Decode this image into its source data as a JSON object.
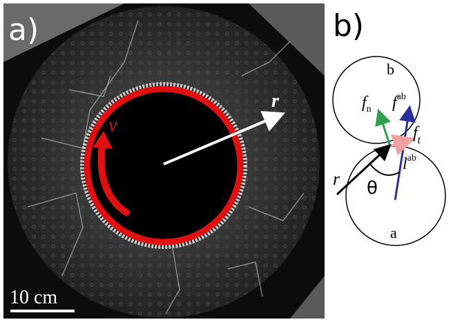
{
  "panel_a": {
    "label": "a)",
    "velocity_label": "v",
    "radius_label": "r",
    "scale_bar": "10 cm"
  },
  "panel_b": {
    "label": "b)",
    "disk_top": "b",
    "disk_bottom": "a",
    "normal_force": {
      "symbol": "f",
      "subscript": "n"
    },
    "contact_force": {
      "symbol": "f",
      "superscript": "ab"
    },
    "tangential_force": {
      "symbol": "f",
      "subscript": "t"
    },
    "branch_vector": {
      "symbol": "l",
      "superscript": "ab"
    },
    "radius_label": "r",
    "angle_label": "θ"
  }
}
